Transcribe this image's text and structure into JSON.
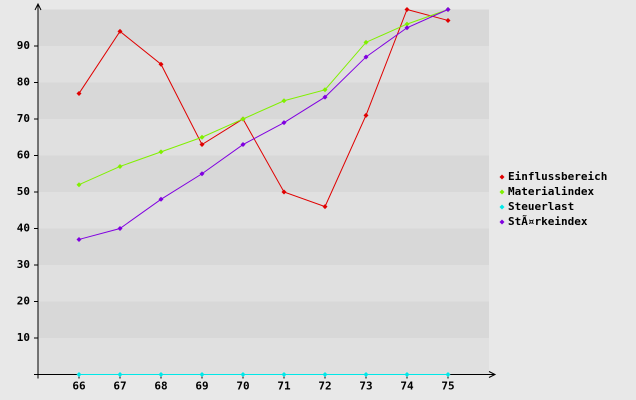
{
  "chart_data": {
    "type": "line",
    "categories": [
      "66",
      "67",
      "68",
      "69",
      "70",
      "71",
      "72",
      "73",
      "74",
      "75"
    ],
    "series": [
      {
        "name": "Einflussbereich",
        "color": "#e00000",
        "values": [
          77,
          94,
          85,
          63,
          70,
          50,
          46,
          71,
          100,
          97
        ]
      },
      {
        "name": "Materialindex",
        "color": "#80f000",
        "values": [
          52,
          57,
          61,
          65,
          70,
          75,
          78,
          91,
          96,
          100
        ]
      },
      {
        "name": "Steuerlast",
        "color": "#00e8e8",
        "values": [
          0,
          0,
          0,
          0,
          0,
          0,
          0,
          0,
          0,
          0
        ]
      },
      {
        "name": "StÃ¤rkeindex",
        "color": "#8000e0",
        "values": [
          37,
          40,
          48,
          55,
          63,
          69,
          76,
          87,
          95,
          100
        ]
      }
    ],
    "ylim": [
      0,
      100
    ],
    "yticks": [
      10,
      20,
      30,
      40,
      50,
      60,
      70,
      80,
      90
    ],
    "grid": true,
    "legend": "right"
  }
}
